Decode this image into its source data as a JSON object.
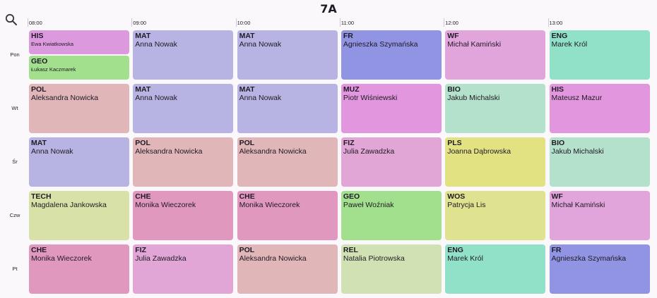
{
  "class_title": "7A",
  "search": {
    "icon": "search-icon"
  },
  "times": [
    "08:00",
    "09:00",
    "10:00",
    "11:00",
    "12:00",
    "13:00"
  ],
  "days": [
    "Pon",
    "Wt",
    "Śr",
    "Czw",
    "Pt"
  ],
  "lessons": [
    [
      {
        "half": [
          {
            "subject": "HIS",
            "teacher": "Ewa Kwiatkowska",
            "color": "#dd99de"
          },
          {
            "subject": "GEO",
            "teacher": "Łukasz Kaczmarek",
            "color": "#a2e08d"
          }
        ]
      },
      {
        "subject": "MAT",
        "teacher": "Anna Nowak",
        "color": "#b7b3e3"
      },
      {
        "subject": "MAT",
        "teacher": "Anna Nowak",
        "color": "#b7b3e3"
      },
      {
        "subject": "FR",
        "teacher": "Agnieszka Szymańska",
        "color": "#9094e2"
      },
      {
        "subject": "WF",
        "teacher": "Michał Kamiński",
        "color": "#e1a5dc"
      },
      {
        "subject": "ENG",
        "teacher": "Marek Król",
        "color": "#90e1c8"
      }
    ],
    [
      {
        "subject": "POL",
        "teacher": "Aleksandra Nowicka",
        "color": "#e1b6b8"
      },
      {
        "subject": "MAT",
        "teacher": "Anna Nowak",
        "color": "#b7b3e3"
      },
      {
        "subject": "MAT",
        "teacher": "Anna Nowak",
        "color": "#b7b3e3"
      },
      {
        "subject": "MUZ",
        "teacher": "Piotr Wiśniewski",
        "color": "#e196de"
      },
      {
        "subject": "BIO",
        "teacher": "Jakub Michalski",
        "color": "#b4e1cb"
      },
      {
        "subject": "HIS",
        "teacher": "Mateusz Mazur",
        "color": "#e196de"
      }
    ],
    [
      {
        "subject": "MAT",
        "teacher": "Anna Nowak",
        "color": "#b7b3e3"
      },
      {
        "subject": "POL",
        "teacher": "Aleksandra Nowicka",
        "color": "#e1b6b8"
      },
      {
        "subject": "POL",
        "teacher": "Aleksandra Nowicka",
        "color": "#e1b6b8"
      },
      {
        "subject": "FIZ",
        "teacher": "Julia Zawadzka",
        "color": "#e1a5d6"
      },
      {
        "subject": "PLS",
        "teacher": "Joanna Dąbrowska",
        "color": "#e3e282"
      },
      {
        "subject": "BIO",
        "teacher": "Jakub Michalski",
        "color": "#b4e1cb"
      }
    ],
    [
      {
        "subject": "TECH",
        "teacher": "Magdalena Jankowska",
        "color": "#d8e2a8"
      },
      {
        "subject": "CHE",
        "teacher": "Monika Wieczorek",
        "color": "#e198bf"
      },
      {
        "subject": "CHE",
        "teacher": "Monika Wieczorek",
        "color": "#e198bf"
      },
      {
        "subject": "GEO",
        "teacher": "Paweł Woźniak",
        "color": "#a2e08d"
      },
      {
        "subject": "WOS",
        "teacher": "Patrycja Lis",
        "color": "#dfe28e"
      },
      {
        "subject": "WF",
        "teacher": "Michał Kamiński",
        "color": "#e1a5dc"
      }
    ],
    [
      {
        "subject": "CHE",
        "teacher": "Monika Wieczorek",
        "color": "#e198bf"
      },
      {
        "subject": "FIZ",
        "teacher": "Julia Zawadzka",
        "color": "#e1a5d6"
      },
      {
        "subject": "POL",
        "teacher": "Aleksandra Nowicka",
        "color": "#e1b6b8"
      },
      {
        "subject": "REL",
        "teacher": "Natalia Piotrowska",
        "color": "#d0e2b4"
      },
      {
        "subject": "ENG",
        "teacher": "Marek Król",
        "color": "#90e1c8"
      },
      {
        "subject": "FR",
        "teacher": "Agnieszka Szymańska",
        "color": "#9094e2"
      }
    ]
  ]
}
